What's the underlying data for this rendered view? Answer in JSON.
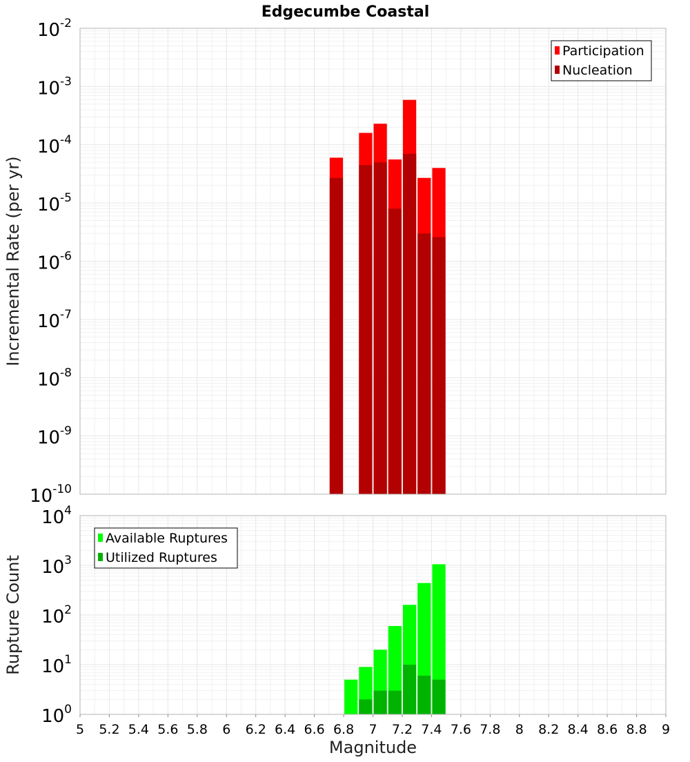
{
  "chart_data": [
    {
      "id": "rate",
      "type": "bar",
      "title": "Edgecumbe Coastal",
      "ylabel": "Incremental Rate (per yr)",
      "xlabel": "",
      "xlim": [
        5,
        9
      ],
      "yscale": "log",
      "ylim_exponent": [
        -10,
        -2
      ],
      "bin_width": 0.1,
      "legend_position": "top-right",
      "series": [
        {
          "name": "Participation",
          "color": "#ff0000",
          "x": [
            6.75,
            6.95,
            7.05,
            7.15,
            7.25,
            7.35,
            7.45
          ],
          "values": [
            6e-05,
            0.00016,
            0.00023,
            5.6e-05,
            0.00059,
            2.7e-05,
            4e-05
          ]
        },
        {
          "name": "Nucleation",
          "color": "#b30000",
          "x": [
            6.75,
            6.95,
            7.05,
            7.15,
            7.25,
            7.35,
            7.45
          ],
          "values": [
            2.7e-05,
            4.5e-05,
            5e-05,
            8e-06,
            7e-05,
            3e-06,
            2.6e-06
          ]
        }
      ]
    },
    {
      "id": "count",
      "type": "bar",
      "title": "",
      "ylabel": "Rupture Count",
      "xlabel": "Magnitude",
      "xlim": [
        5,
        9
      ],
      "yscale": "log",
      "ylim_exponent": [
        0,
        4
      ],
      "bin_width": 0.1,
      "legend_position": "top-left",
      "x_ticks": [
        "5",
        "5.2",
        "5.4",
        "5.6",
        "5.8",
        "6",
        "6.2",
        "6.4",
        "6.6",
        "6.8",
        "7",
        "7.2",
        "7.4",
        "7.6",
        "7.8",
        "8",
        "8.2",
        "8.4",
        "8.6",
        "8.8",
        "9"
      ],
      "series": [
        {
          "name": "Available Ruptures",
          "color": "#00ff00",
          "x": [
            6.45,
            6.75,
            6.85,
            6.95,
            7.05,
            7.15,
            7.25,
            7.35,
            7.45
          ],
          "values": [
            1,
            1,
            5,
            9,
            20,
            60,
            160,
            440,
            1050
          ]
        },
        {
          "name": "Utilized Ruptures",
          "color": "#00b300",
          "x": [
            6.75,
            6.95,
            7.05,
            7.15,
            7.25,
            7.35,
            7.45
          ],
          "values": [
            1,
            2,
            3,
            3,
            10,
            6,
            5
          ]
        }
      ]
    }
  ]
}
